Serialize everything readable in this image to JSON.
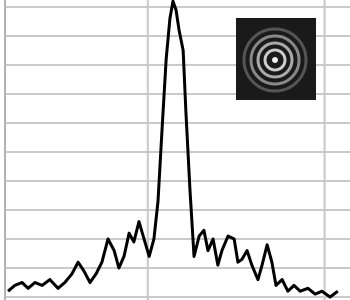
{
  "chart_data": {
    "type": "line",
    "color": "#000000",
    "grid": true,
    "xlim": [
      0,
      100
    ],
    "xticks": [
      42,
      94
    ],
    "ylim": [
      0,
      10
    ],
    "yticks": [
      0,
      1,
      2,
      3,
      4,
      5,
      6,
      7,
      8,
      9,
      10
    ],
    "x": [
      0.9,
      2.9,
      5.0,
      6.8,
      8.8,
      10.9,
      13.2,
      15.6,
      17.6,
      19.7,
      21.5,
      23.2,
      25.0,
      26.8,
      28.5,
      30.3,
      32.1,
      33.5,
      35.0,
      36.5,
      37.9,
      39.4,
      40.9,
      42.4,
      43.8,
      45.0,
      46.2,
      47.4,
      48.5,
      49.4,
      50.3,
      51.2,
      52.4,
      53.2,
      54.4,
      55.6,
      57.1,
      58.5,
      59.7,
      61.2,
      62.6,
      63.8,
      65.6,
      67.4,
      68.5,
      69.7,
      71.2,
      72.6,
      74.4,
      75.6,
      77.1,
      78.5,
      79.7,
      81.5,
      83.2,
      85.0,
      86.8,
      89.1,
      91.2,
      93.2,
      95.6,
      97.9
    ],
    "values": [
      0.2,
      0.4,
      0.5,
      0.3,
      0.5,
      0.4,
      0.6,
      0.3,
      0.5,
      0.8,
      1.2,
      0.9,
      0.5,
      0.8,
      1.2,
      2.0,
      1.6,
      1.0,
      1.4,
      2.2,
      1.9,
      2.6,
      2.0,
      1.4,
      2.0,
      3.3,
      5.8,
      8.2,
      9.6,
      10.2,
      9.9,
      9.2,
      8.5,
      6.4,
      3.7,
      1.4,
      2.1,
      2.3,
      1.6,
      2.0,
      1.1,
      1.6,
      2.1,
      2.0,
      1.2,
      1.3,
      1.6,
      1.1,
      0.6,
      1.1,
      1.8,
      1.2,
      0.4,
      0.6,
      0.2,
      0.4,
      0.2,
      0.3,
      0.1,
      0.2,
      0.0,
      0.2
    ]
  }
}
